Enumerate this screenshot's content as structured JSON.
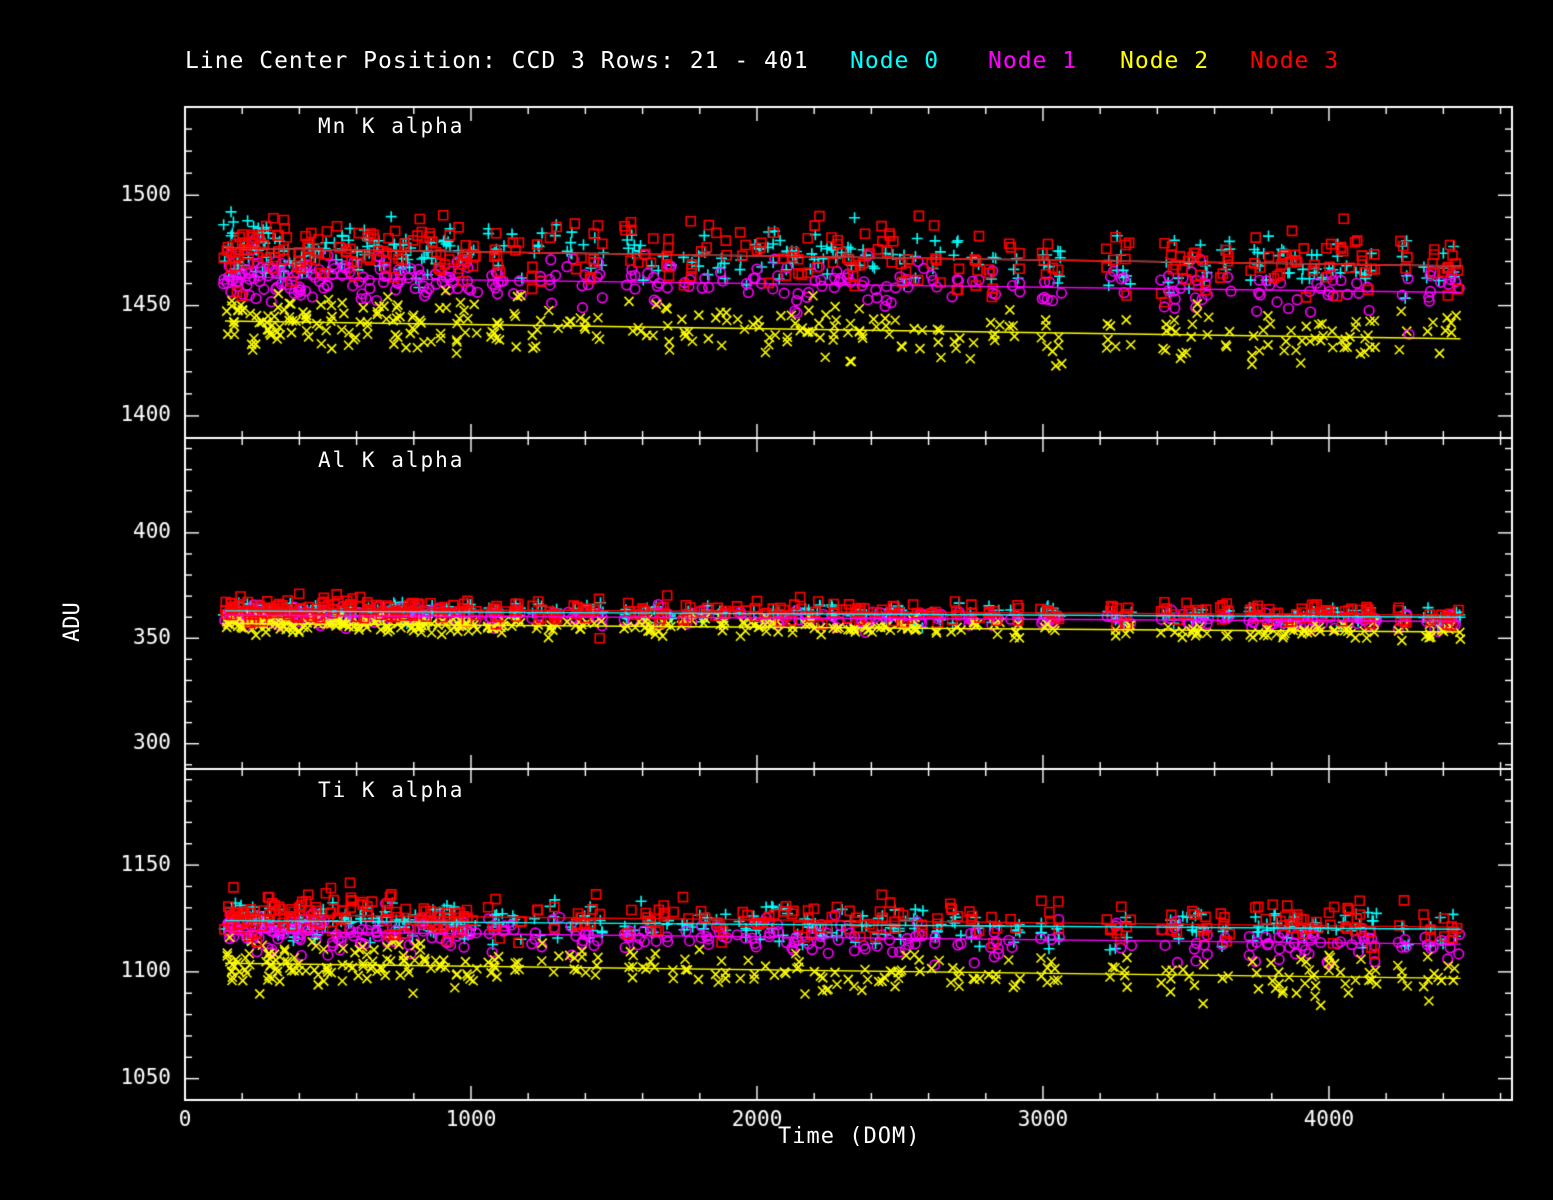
{
  "title": "Line Center Position: CCD 3 Rows: 21 - 401",
  "colors": {
    "background": "#000000",
    "axis": "#ffffff",
    "text": "#ffffff"
  },
  "legend": [
    {
      "label": "Node 0",
      "color": "#00ffff"
    },
    {
      "label": "Node 1",
      "color": "#ff00ff"
    },
    {
      "label": "Node 2",
      "color": "#ffff00"
    },
    {
      "label": "Node 3",
      "color": "#ff0000"
    }
  ],
  "chart_data": {
    "type": "scatter",
    "title": "Line Center Position: CCD 3 Rows: 21 - 401",
    "xlabel": "Time (DOM)",
    "ylabel": "ADU",
    "xlim": [
      0,
      4640
    ],
    "x_major_ticks": [
      0,
      1000,
      2000,
      3000,
      4000
    ],
    "x_minor_step": 200,
    "grid": false,
    "legend_position": "top",
    "nodes": [
      {
        "name": "Node 0",
        "color": "#00ffff",
        "marker": "plus"
      },
      {
        "name": "Node 1",
        "color": "#ff00ff",
        "marker": "circle"
      },
      {
        "name": "Node 2",
        "color": "#ffff00",
        "marker": "x"
      },
      {
        "name": "Node 3",
        "color": "#ff0000",
        "marker": "square"
      }
    ],
    "cluster_x": [
      150,
      165,
      180,
      200,
      215,
      235,
      255,
      275,
      295,
      315,
      340,
      365,
      390,
      415,
      440,
      470,
      500,
      530,
      560,
      595,
      625,
      655,
      690,
      720,
      750,
      785,
      815,
      845,
      880,
      910,
      940,
      970,
      1005,
      1075,
      1100,
      1160,
      1230,
      1290,
      1355,
      1400,
      1445,
      1555,
      1600,
      1645,
      1690,
      1755,
      1815,
      1875,
      1950,
      2000,
      2045,
      2090,
      2140,
      2185,
      2230,
      2280,
      2330,
      2375,
      2420,
      2465,
      2510,
      2565,
      2625,
      2695,
      2760,
      2830,
      2900,
      3010,
      3050,
      3240,
      3290,
      3430,
      3470,
      3520,
      3560,
      3640,
      3740,
      3790,
      3830,
      3870,
      3920,
      3960,
      4010,
      4060,
      4110,
      4150,
      4260,
      4350,
      4400,
      4440
    ],
    "panels": [
      {
        "title": "Mn K alpha",
        "ylim": [
          1390,
          1540
        ],
        "y_major_ticks": [
          1400,
          1450,
          1500
        ],
        "y_minor_step": 10,
        "series": [
          {
            "node": "Node 0",
            "trend_start": 1476,
            "trend_end": 1468,
            "scatter_sigma": 6
          },
          {
            "node": "Node 1",
            "trend_start": 1463,
            "trend_end": 1456,
            "scatter_sigma": 5
          },
          {
            "node": "Node 2",
            "trend_start": 1443,
            "trend_end": 1435,
            "scatter_sigma": 6
          },
          {
            "node": "Node 3",
            "trend_start": 1476,
            "trend_end": 1468,
            "scatter_sigma": 7
          }
        ],
        "outliers": [
          {
            "node_index": 1,
            "x": 4280,
            "y": 1437
          }
        ]
      },
      {
        "title": "Al K alpha",
        "ylim": [
          288,
          445
        ],
        "y_major_ticks": [
          300,
          350,
          400
        ],
        "y_minor_step": 10,
        "series": [
          {
            "node": "Node 0",
            "trend_start": 363,
            "trend_end": 360,
            "scatter_sigma": 2
          },
          {
            "node": "Node 1",
            "trend_start": 361,
            "trend_end": 358,
            "scatter_sigma": 2
          },
          {
            "node": "Node 2",
            "trend_start": 357,
            "trend_end": 353,
            "scatter_sigma": 2
          },
          {
            "node": "Node 3",
            "trend_start": 364,
            "trend_end": 361,
            "scatter_sigma": 2.5
          }
        ],
        "outliers": [
          {
            "node_index": 3,
            "x": 1450,
            "y": 350
          },
          {
            "node_index": 2,
            "x": 1670,
            "y": 351
          },
          {
            "node_index": 1,
            "x": 1655,
            "y": 366
          }
        ]
      },
      {
        "title": "Ti K alpha",
        "ylim": [
          1040,
          1195
        ],
        "y_major_ticks": [
          1050,
          1100,
          1150
        ],
        "y_minor_step": 10,
        "series": [
          {
            "node": "Node 0",
            "trend_start": 1124,
            "trend_end": 1120,
            "scatter_sigma": 4
          },
          {
            "node": "Node 1",
            "trend_start": 1119,
            "trend_end": 1113,
            "scatter_sigma": 4
          },
          {
            "node": "Node 2",
            "trend_start": 1104,
            "trend_end": 1097,
            "scatter_sigma": 5
          },
          {
            "node": "Node 3",
            "trend_start": 1127,
            "trend_end": 1121,
            "scatter_sigma": 5
          }
        ],
        "outliers": [
          {
            "node_index": 1,
            "x": 2830,
            "y": 1107
          }
        ]
      }
    ]
  }
}
